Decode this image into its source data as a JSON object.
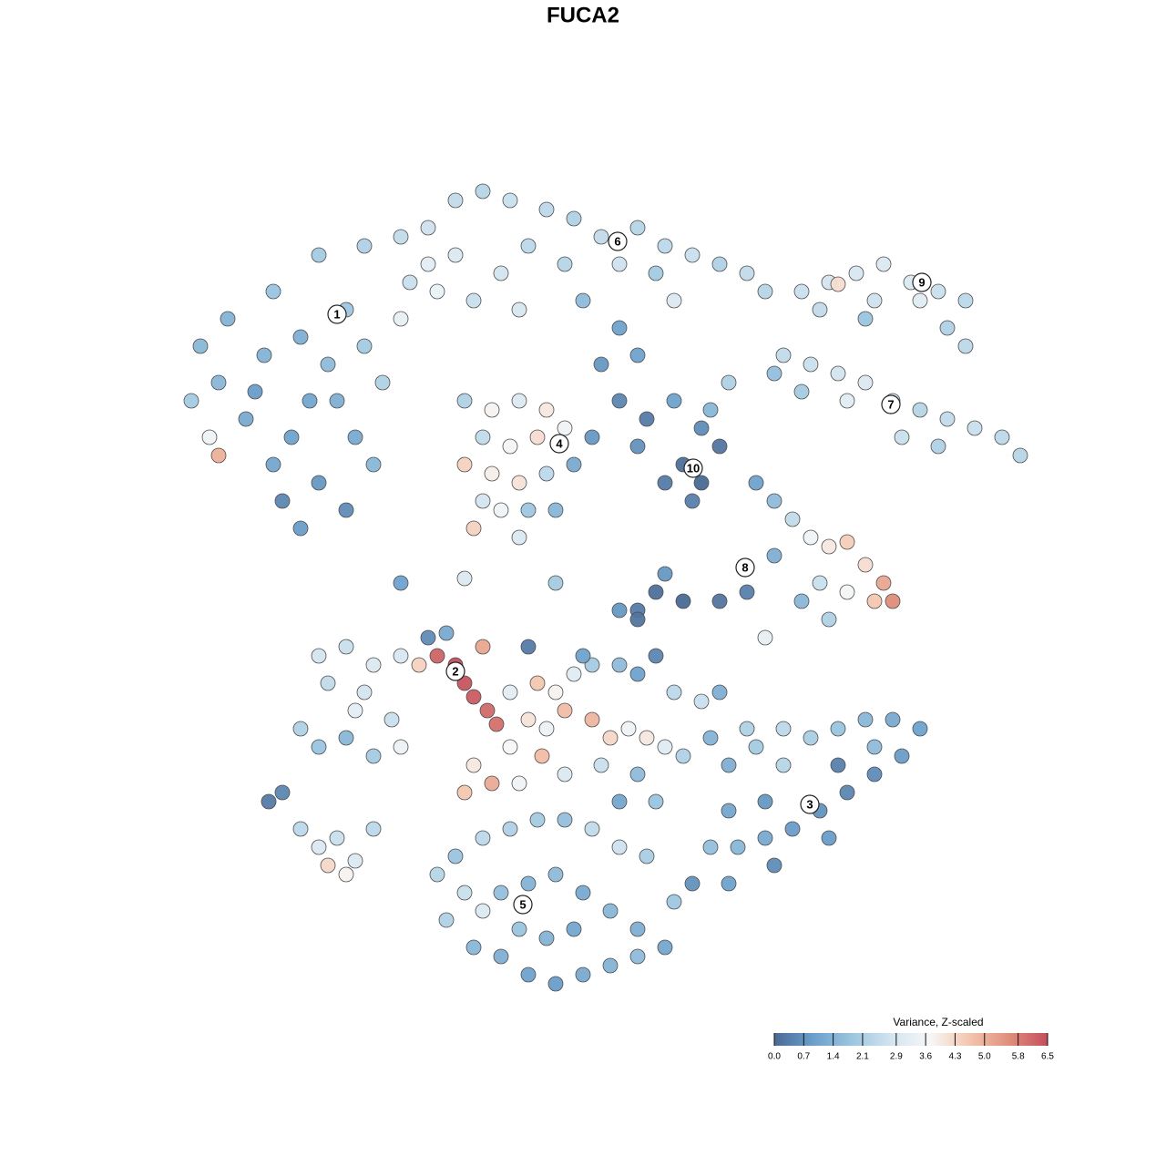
{
  "chart_data": {
    "type": "scatter",
    "title": "FUCA2",
    "xlim": [
      0,
      128
    ],
    "ylim": [
      0,
      128
    ],
    "x": [
      22,
      25,
      30,
      35,
      40,
      44,
      28,
      32,
      35,
      38,
      33,
      30,
      27,
      36,
      40,
      42,
      44,
      45,
      38,
      33,
      24,
      21,
      23,
      24,
      39,
      41,
      31,
      34,
      29,
      37,
      47,
      50,
      53,
      56,
      60,
      63,
      66,
      70,
      73,
      76,
      79,
      82,
      84,
      50,
      47,
      55,
      58,
      62,
      68,
      72,
      74,
      64,
      68,
      52,
      57,
      48,
      66,
      70,
      88,
      91,
      94,
      97,
      100,
      103,
      106,
      92,
      96,
      101,
      104,
      106,
      90,
      95,
      86,
      89,
      92,
      95,
      98,
      101,
      104,
      107,
      110,
      112,
      103,
      99,
      93,
      88,
      85,
      51,
      54,
      57,
      60,
      62,
      59,
      56,
      53,
      51,
      54,
      57,
      60,
      63,
      65,
      53,
      55,
      58,
      61,
      52,
      57,
      68,
      71,
      74,
      77,
      79,
      75,
      77,
      76,
      73,
      70,
      78,
      80,
      83,
      85,
      87,
      89,
      91,
      93,
      95,
      97,
      98,
      96,
      93,
      90,
      88,
      91,
      85,
      82,
      79,
      75,
      72,
      70,
      73,
      84,
      35,
      38,
      41,
      44,
      46,
      48,
      50,
      51,
      52,
      53.5,
      54.5,
      36,
      40,
      33,
      35,
      38,
      41,
      44,
      43,
      39,
      47,
      49,
      53,
      56,
      59,
      61,
      63,
      65,
      68,
      70,
      72,
      74,
      77,
      79,
      58,
      60,
      62,
      65,
      67,
      69,
      71,
      73,
      75,
      56,
      59.5,
      62,
      57,
      52,
      51,
      54,
      66,
      70,
      68,
      72,
      78,
      82,
      80,
      83,
      86,
      89,
      92,
      95,
      98,
      101,
      99,
      96,
      93,
      90,
      87,
      84,
      81,
      78,
      80,
      84,
      89,
      92,
      96,
      86,
      80,
      85,
      91,
      50,
      53,
      56,
      59,
      62,
      65,
      68,
      71,
      48,
      51,
      53,
      49,
      55,
      58,
      61,
      64,
      67,
      70,
      73,
      52,
      55,
      58,
      61,
      64,
      67,
      70,
      60,
      63,
      57,
      74,
      76,
      29.5,
      31,
      33,
      35,
      36,
      38,
      39,
      37,
      41,
      44,
      51,
      58,
      64,
      68,
      70,
      61
    ],
    "y": [
      90,
      93,
      96,
      100,
      101,
      102,
      85,
      80,
      75,
      72,
      70,
      77,
      82,
      88,
      90,
      86,
      93,
      97,
      94,
      91,
      86,
      84,
      80,
      78,
      80,
      77,
      73,
      84,
      89,
      84,
      103,
      106,
      107,
      106,
      105,
      104,
      102,
      103,
      101,
      100,
      99,
      98,
      96,
      100,
      99,
      98,
      101,
      99,
      99,
      98,
      95,
      95,
      92,
      95,
      94,
      96,
      88,
      89,
      96,
      97,
      98,
      99,
      97,
      96,
      95,
      96.8,
      95,
      95,
      92,
      90,
      94,
      93,
      89,
      88,
      87,
      86,
      84,
      83,
      82,
      81,
      80,
      78,
      79,
      80,
      84,
      85,
      87,
      84,
      83,
      84,
      83,
      81,
      80,
      79,
      80,
      77,
      76,
      75,
      76,
      77,
      80,
      73,
      72,
      72,
      72,
      70,
      69,
      84,
      82,
      84,
      81,
      79,
      77,
      75,
      73,
      75,
      79,
      83,
      86,
      75,
      73,
      71,
      69,
      68,
      68.5,
      66,
      64,
      62,
      62,
      63,
      64,
      62,
      60,
      67,
      63,
      62,
      62,
      63,
      61,
      65,
      58,
      56,
      57,
      55,
      56,
      55,
      56,
      55,
      53,
      51.5,
      50,
      48.5,
      53,
      52,
      48,
      46,
      47,
      45,
      46,
      49,
      50,
      58,
      58.5,
      57,
      52,
      53,
      52,
      54,
      55,
      55,
      54,
      56,
      52,
      51,
      52,
      49,
      48,
      50,
      49,
      47,
      48,
      47,
      46,
      45,
      46,
      45,
      43,
      42,
      44,
      41,
      42,
      44,
      43,
      40,
      40,
      47,
      48,
      44,
      46,
      48,
      47,
      48,
      49,
      49,
      48,
      45,
      43,
      41,
      39,
      37,
      36,
      35,
      35,
      39,
      40,
      39.5,
      44,
      46,
      44,
      31,
      33,
      36,
      34,
      36,
      37,
      38,
      38,
      37,
      35,
      34,
      32,
      30,
      28,
      27,
      30,
      31,
      32,
      30,
      28,
      26,
      24,
      24,
      23,
      21,
      20,
      21,
      22,
      23,
      25,
      26,
      26,
      29,
      31,
      40,
      41,
      37,
      35,
      33,
      32,
      33.5,
      36,
      37,
      64,
      64.5,
      57,
      56,
      61,
      60,
      64
    ],
    "values": [
      1.5,
      1.4,
      1.8,
      2.0,
      2.2,
      2.5,
      0.9,
      1.0,
      0.8,
      0.6,
      0.9,
      1.1,
      1.2,
      1.6,
      2.0,
      2.2,
      3.3,
      2.6,
      1.9,
      1.3,
      1.5,
      2.0,
      3.5,
      5.0,
      1.2,
      1.5,
      0.5,
      1.1,
      1.4,
      1.3,
      2.7,
      2.5,
      2.3,
      2.6,
      2.4,
      2.2,
      2.5,
      2.3,
      2.4,
      2.6,
      2.2,
      2.5,
      2.3,
      3.0,
      3.2,
      2.8,
      2.4,
      2.3,
      2.7,
      2.0,
      3.0,
      1.6,
      1.0,
      2.6,
      2.9,
      3.4,
      0.8,
      1.0,
      2.6,
      2.8,
      2.9,
      3.0,
      3.0,
      2.6,
      2.4,
      4.2,
      2.7,
      3.1,
      2.2,
      2.4,
      2.5,
      1.8,
      2.5,
      2.6,
      2.8,
      3.0,
      2.7,
      2.3,
      2.5,
      2.6,
      2.4,
      2.3,
      2.2,
      2.6,
      3.1,
      2.0,
      1.7,
      2.2,
      3.8,
      3.0,
      4.0,
      3.5,
      4.2,
      3.6,
      2.5,
      4.4,
      3.9,
      4.1,
      2.4,
      1.2,
      0.8,
      2.8,
      3.5,
      1.9,
      1.5,
      4.4,
      3.0,
      0.5,
      0.3,
      1.0,
      0.6,
      0.2,
      0.1,
      0.0,
      0.4,
      0.3,
      0.7,
      1.5,
      2.2,
      1.0,
      1.6,
      2.5,
      3.5,
      4.0,
      4.5,
      4.2,
      5.2,
      5.6,
      4.6,
      3.6,
      2.6,
      1.5,
      2.2,
      1.3,
      0.4,
      0.2,
      0.0,
      0.1,
      0.3,
      0.8,
      3.3,
      2.8,
      2.6,
      3.0,
      2.9,
      4.4,
      6.2,
      6.5,
      6.4,
      6.3,
      6.1,
      6.0,
      2.5,
      2.8,
      2.2,
      1.8,
      1.5,
      2.0,
      3.4,
      2.6,
      3.2,
      0.6,
      1.2,
      5.2,
      3.2,
      4.6,
      3.8,
      3.1,
      2.0,
      1.6,
      1.0,
      0.5,
      2.4,
      2.6,
      1.3,
      4.1,
      3.4,
      4.8,
      4.9,
      4.3,
      3.5,
      4.0,
      3.1,
      2.2,
      3.7,
      4.8,
      3.0,
      3.5,
      4.0,
      4.6,
      5.1,
      2.6,
      1.6,
      1.1,
      1.8,
      1.4,
      2.2,
      1.3,
      2.0,
      2.4,
      2.1,
      1.8,
      1.5,
      1.2,
      1.0,
      0.9,
      0.6,
      0.5,
      0.7,
      0.9,
      1.2,
      1.5,
      1.7,
      1.1,
      0.8,
      3.7,
      0.4,
      1.6,
      2.3,
      1.0,
      0.6,
      0.9,
      1.8,
      2.4,
      2.2,
      2.0,
      1.7,
      2.5,
      2.7,
      2.1,
      2.3,
      2.6,
      3.0,
      2.2,
      1.7,
      1.4,
      1.6,
      1.2,
      1.5,
      1.3,
      1.1,
      1.5,
      1.3,
      1.0,
      0.9,
      1.2,
      1.4,
      1.6,
      1.4,
      1.1,
      1.8,
      1.9,
      0.7,
      0.3,
      0.5,
      2.4,
      3.0,
      4.3,
      3.8,
      3.0,
      2.6,
      2.4,
      1.0,
      3.0,
      0.3,
      1.0,
      0.8,
      0.2,
      2.0
    ],
    "annotations": [
      {
        "label": "1",
        "x": 37,
        "y": 93.5
      },
      {
        "label": "2",
        "x": 50,
        "y": 54.3
      },
      {
        "label": "3",
        "x": 88.9,
        "y": 39.7
      },
      {
        "label": "4",
        "x": 61.4,
        "y": 79.3
      },
      {
        "label": "5",
        "x": 57.4,
        "y": 28.7
      },
      {
        "label": "6",
        "x": 67.8,
        "y": 101.5
      },
      {
        "label": "7",
        "x": 97.8,
        "y": 83.6
      },
      {
        "label": "8",
        "x": 81.8,
        "y": 65.7
      },
      {
        "label": "9",
        "x": 101.2,
        "y": 97
      },
      {
        "label": "10",
        "x": 76.1,
        "y": 76.6
      }
    ],
    "colorbar": {
      "title": "Variance, Z-scaled",
      "clim": [
        0,
        6.5
      ],
      "colormap": [
        "#4a6a94",
        "#6b9fcb",
        "#9cc6e0",
        "#d3e5ef",
        "#f7f7f7",
        "#f3c5ad",
        "#e08f7c",
        "#c44e5c"
      ],
      "ticks": [
        {
          "value": 0,
          "label": "0.0"
        },
        0.7,
        1.4,
        2.1,
        2.9,
        3.6,
        4.3,
        {
          "value": 5,
          "label": "5.0"
        },
        5.8,
        6.5
      ]
    }
  }
}
